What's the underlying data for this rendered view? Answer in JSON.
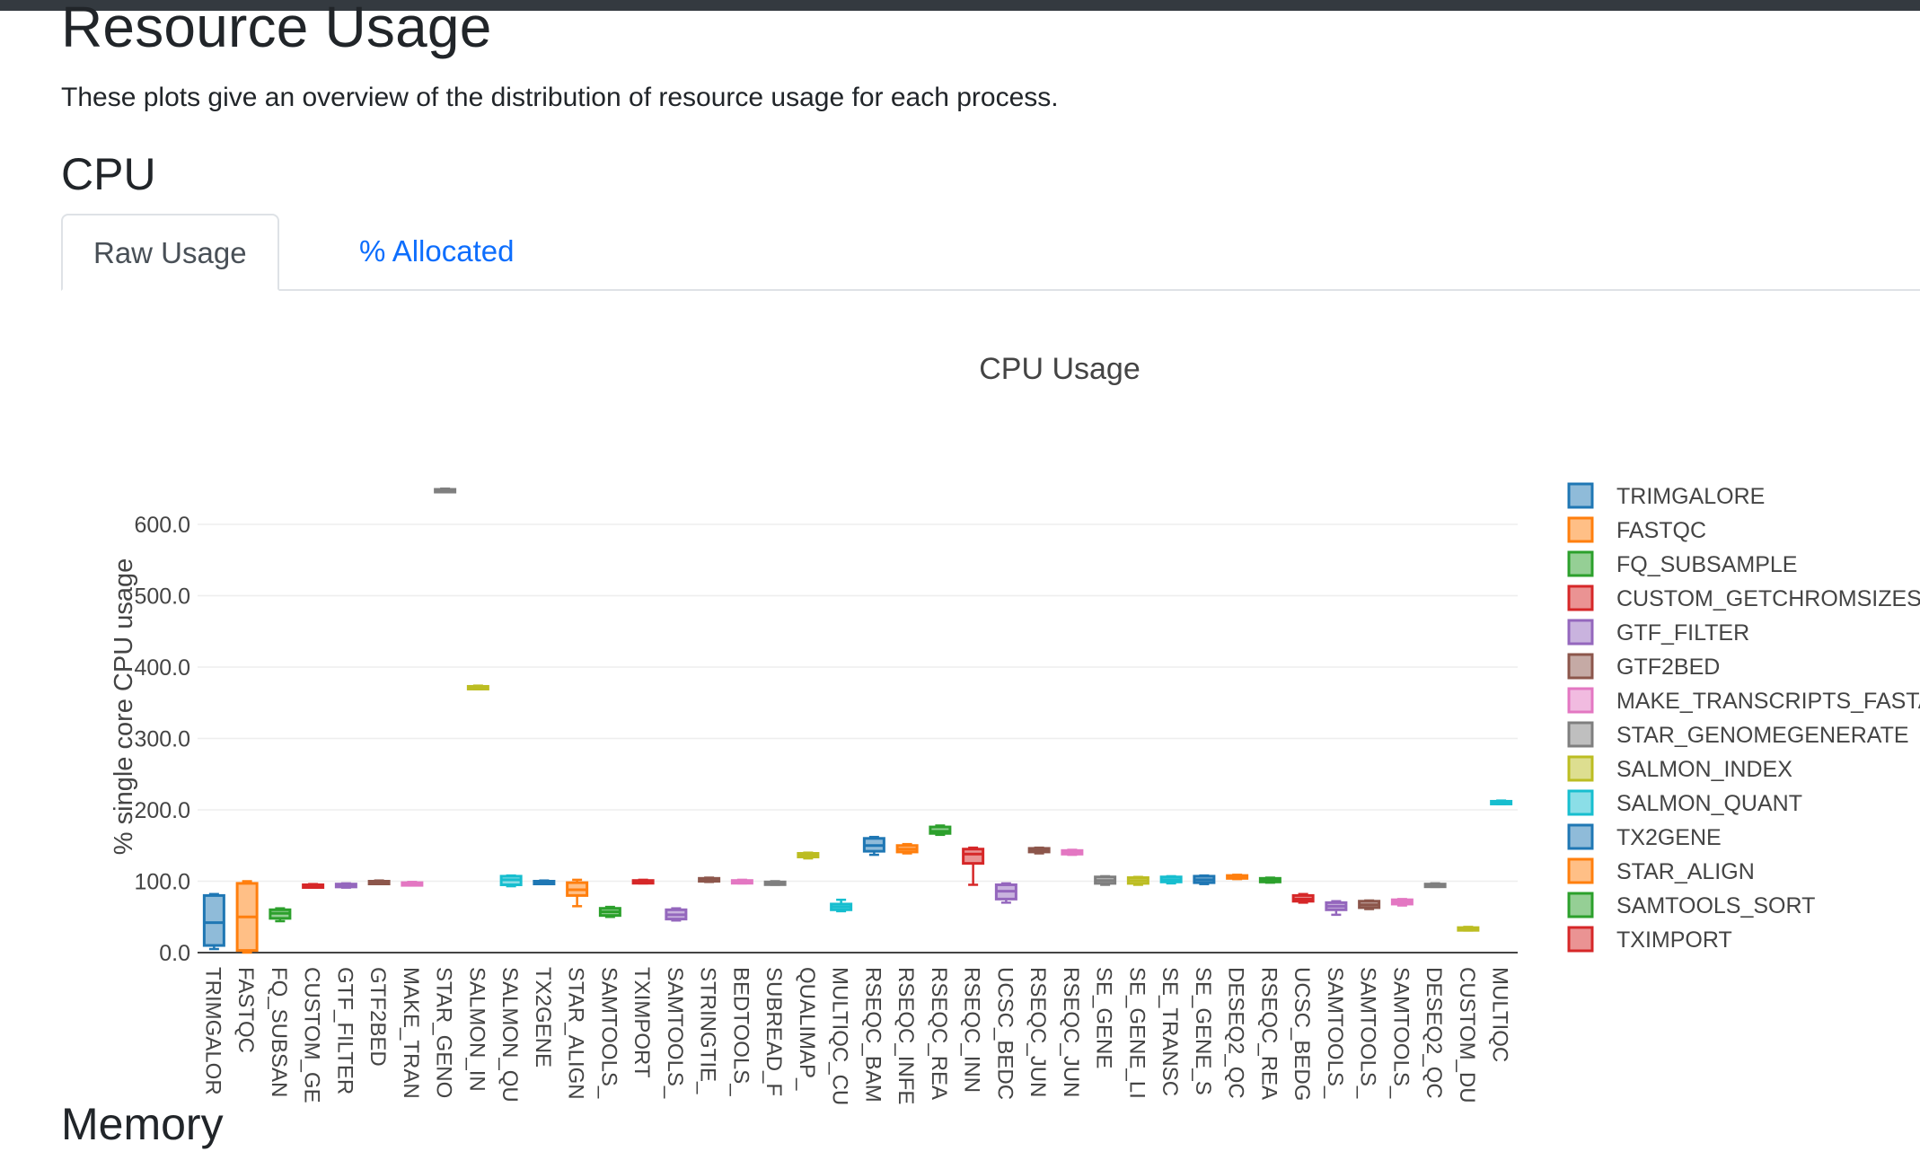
{
  "page": {
    "title": "Resource Usage",
    "description": "These plots give an overview of the distribution of resource usage for each process.",
    "cpu_section": "CPU",
    "memory_section": "Memory"
  },
  "tabs": [
    {
      "label": "Raw Usage",
      "active": true
    },
    {
      "label": "% Allocated",
      "active": false
    }
  ],
  "chart_data": {
    "type": "box",
    "title": "CPU Usage",
    "ylabel": "% single core CPU usage",
    "xlabel": "",
    "ylim": [
      0,
      650
    ],
    "yticks": [
      "0.0",
      "100.0",
      "200.0",
      "300.0",
      "400.0",
      "500.0",
      "600.0"
    ],
    "grid": true,
    "legend_position": "right",
    "palette": [
      "#1f77b4",
      "#ff7f0e",
      "#2ca02c",
      "#d62728",
      "#9467bd",
      "#8c564b",
      "#e377c2",
      "#7f7f7f",
      "#bcbd22",
      "#17becf"
    ],
    "categories": [
      "TRIMGALOR",
      "FASTQC",
      "FQ_SUBSAN",
      "CUSTOM_GE",
      "GTF_FILTER",
      "GTF2BED",
      "MAKE_TRAN",
      "STAR_GENO",
      "SALMON_IN",
      "SALMON_QU",
      "TX2GENE",
      "STAR_ALIGN",
      "SAMTOOLS_",
      "TXIMPORT",
      "SAMTOOLS_",
      "STRINGTIE_",
      "BEDTOOLS_",
      "SUBREAD_F",
      "QUALIMAP_",
      "MULTIQC_CU",
      "RSEQC_BAM",
      "RSEQC_INFE",
      "RSEQC_REA",
      "RSEQC_INN",
      "UCSC_BEDC",
      "RSEQC_JUN",
      "RSEQC_JUN",
      "SE_GENE",
      "SE_GENE_LI",
      "SE_TRANSC",
      "SE_GENE_S",
      "DESEQ2_QC",
      "RSEQC_REA",
      "UCSC_BEDG",
      "SAMTOOLS_",
      "SAMTOOLS_",
      "SAMTOOLS_",
      "DESEQ2_QC",
      "CUSTOM_DU",
      "MULTIQC"
    ],
    "series": [
      {
        "q1": 10,
        "median": 42,
        "q3": 80,
        "min": 5,
        "max": 82
      },
      {
        "q1": 3,
        "median": 50,
        "q3": 97,
        "min": 0,
        "max": 100
      },
      {
        "q1": 48,
        "median": 55,
        "q3": 60,
        "min": 44,
        "max": 62
      },
      {
        "q1": 92,
        "median": 93,
        "q3": 95,
        "min": 91,
        "max": 96
      },
      {
        "q1": 92,
        "median": 94,
        "q3": 96,
        "min": 91,
        "max": 97
      },
      {
        "q1": 97,
        "median": 98,
        "q3": 100,
        "min": 96,
        "max": 101
      },
      {
        "q1": 95,
        "median": 96,
        "q3": 98,
        "min": 94,
        "max": 99
      },
      {
        "q1": 647,
        "median": 648,
        "q3": 649,
        "min": 646,
        "max": 650
      },
      {
        "q1": 370,
        "median": 371,
        "q3": 373,
        "min": 369,
        "max": 374
      },
      {
        "q1": 95,
        "median": 102,
        "q3": 107,
        "min": 93,
        "max": 108
      },
      {
        "q1": 97,
        "median": 98,
        "q3": 100,
        "min": 96,
        "max": 101
      },
      {
        "q1": 80,
        "median": 88,
        "q3": 98,
        "min": 65,
        "max": 102
      },
      {
        "q1": 52,
        "median": 57,
        "q3": 62,
        "min": 50,
        "max": 64
      },
      {
        "q1": 98,
        "median": 99,
        "q3": 101,
        "min": 97,
        "max": 102
      },
      {
        "q1": 47,
        "median": 53,
        "q3": 60,
        "min": 45,
        "max": 62
      },
      {
        "q1": 100,
        "median": 102,
        "q3": 104,
        "min": 99,
        "max": 105
      },
      {
        "q1": 98,
        "median": 99,
        "q3": 101,
        "min": 97,
        "max": 102
      },
      {
        "q1": 96,
        "median": 97,
        "q3": 99,
        "min": 95,
        "max": 100
      },
      {
        "q1": 134,
        "median": 136,
        "q3": 139,
        "min": 132,
        "max": 140
      },
      {
        "q1": 60,
        "median": 64,
        "q3": 68,
        "min": 58,
        "max": 74
      },
      {
        "q1": 142,
        "median": 150,
        "q3": 160,
        "min": 137,
        "max": 162
      },
      {
        "q1": 141,
        "median": 145,
        "q3": 150,
        "min": 139,
        "max": 152
      },
      {
        "q1": 167,
        "median": 170,
        "q3": 176,
        "min": 165,
        "max": 178
      },
      {
        "q1": 125,
        "median": 138,
        "q3": 145,
        "min": 95,
        "max": 147
      },
      {
        "q1": 75,
        "median": 86,
        "q3": 95,
        "min": 70,
        "max": 97
      },
      {
        "q1": 141,
        "median": 143,
        "q3": 146,
        "min": 139,
        "max": 147
      },
      {
        "q1": 138,
        "median": 140,
        "q3": 143,
        "min": 137,
        "max": 144
      },
      {
        "q1": 97,
        "median": 101,
        "q3": 106,
        "min": 95,
        "max": 107
      },
      {
        "q1": 97,
        "median": 101,
        "q3": 105,
        "min": 95,
        "max": 106
      },
      {
        "q1": 99,
        "median": 102,
        "q3": 106,
        "min": 97,
        "max": 107
      },
      {
        "q1": 98,
        "median": 102,
        "q3": 107,
        "min": 96,
        "max": 108
      },
      {
        "q1": 104,
        "median": 106,
        "q3": 108,
        "min": 103,
        "max": 109
      },
      {
        "q1": 99,
        "median": 101,
        "q3": 104,
        "min": 98,
        "max": 105
      },
      {
        "q1": 72,
        "median": 75,
        "q3": 80,
        "min": 70,
        "max": 82
      },
      {
        "q1": 60,
        "median": 65,
        "q3": 70,
        "min": 53,
        "max": 72
      },
      {
        "q1": 63,
        "median": 67,
        "q3": 72,
        "min": 61,
        "max": 73
      },
      {
        "q1": 68,
        "median": 71,
        "q3": 74,
        "min": 66,
        "max": 75
      },
      {
        "q1": 93,
        "median": 94,
        "q3": 96,
        "min": 92,
        "max": 97
      },
      {
        "q1": 32,
        "median": 33,
        "q3": 35,
        "min": 31,
        "max": 36
      },
      {
        "q1": 209,
        "median": 210,
        "q3": 212,
        "min": 208,
        "max": 213
      }
    ],
    "legend": [
      "TRIMGALORE",
      "FASTQC",
      "FQ_SUBSAMPLE",
      "CUSTOM_GETCHROMSIZES",
      "GTF_FILTER",
      "GTF2BED",
      "MAKE_TRANSCRIPTS_FASTA",
      "STAR_GENOMEGENERATE",
      "SALMON_INDEX",
      "SALMON_QUANT",
      "TX2GENE",
      "STAR_ALIGN",
      "SAMTOOLS_SORT",
      "TXIMPORT"
    ]
  }
}
